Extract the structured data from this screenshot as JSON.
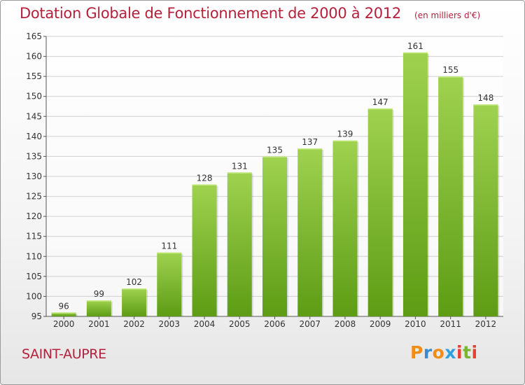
{
  "header": {
    "title": "Dotation Globale de Fonctionnement de 2000 à 2012",
    "subtitle": "(en milliers d'€)"
  },
  "footer": {
    "commune": "SAINT-AUPRE",
    "brand": "Proxiti"
  },
  "colors": {
    "accent": "#b5203b",
    "bar_top": "#9fd24f",
    "bar_bottom": "#5d9c14",
    "grid": "#d0d0d0",
    "brand_letters": [
      "#f08c18",
      "#3b8bd0",
      "#f08c18",
      "#2f9fde",
      "#e8402f",
      "#79b729",
      "#e8402f"
    ]
  },
  "chart_data": {
    "type": "bar",
    "title": "Dotation Globale de Fonctionnement de 2000 à 2012",
    "subtitle": "(en milliers d'€)",
    "xlabel": "",
    "ylabel": "",
    "categories": [
      "2000",
      "2001",
      "2002",
      "2003",
      "2004",
      "2005",
      "2006",
      "2007",
      "2008",
      "2009",
      "2010",
      "2011",
      "2012"
    ],
    "values": [
      96,
      99,
      102,
      111,
      128,
      131,
      135,
      137,
      139,
      147,
      161,
      155,
      148
    ],
    "ylim": [
      95,
      165
    ],
    "yticks": [
      95,
      100,
      105,
      110,
      115,
      120,
      125,
      130,
      135,
      140,
      145,
      150,
      155,
      160,
      165
    ],
    "grid": true,
    "data_labels": true
  }
}
